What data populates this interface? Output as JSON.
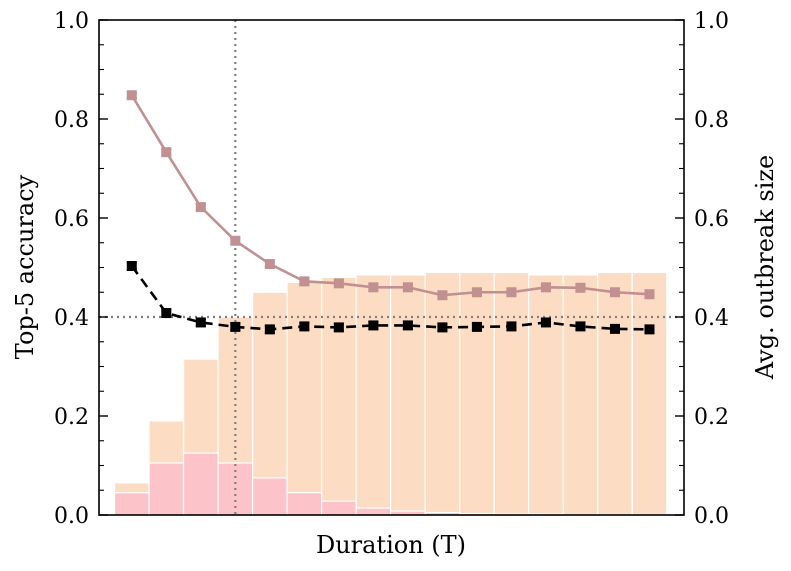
{
  "chart_data": {
    "type": "bar",
    "title": "",
    "xlabel": "Duration (T)",
    "ylabel_left": "Top-5 accuracy",
    "ylabel_right": "Avg. outbreak size",
    "ylim_left": [
      0,
      1.0
    ],
    "ylim_right": [
      0,
      1.0
    ],
    "yticks": [
      "0.0",
      "0.2",
      "0.4",
      "0.6",
      "0.8",
      "1.0"
    ],
    "x": [
      1,
      2,
      3,
      4,
      5,
      6,
      7,
      8,
      9,
      10,
      11,
      12,
      13,
      14,
      15,
      16
    ],
    "xlim": [
      0.05,
      17.0
    ],
    "bar_series": [
      {
        "color": "#fddcc4",
        "values": [
          0.065,
          0.19,
          0.315,
          0.4,
          0.45,
          0.47,
          0.48,
          0.485,
          0.485,
          0.49,
          0.49,
          0.49,
          0.485,
          0.485,
          0.49,
          0.49
        ]
      },
      {
        "color": "#fcc3c9",
        "values": [
          0.045,
          0.105,
          0.125,
          0.105,
          0.075,
          0.045,
          0.028,
          0.014,
          0.008,
          0.005,
          0.003,
          0.002,
          0.002,
          0.001,
          0.001,
          0.001
        ]
      }
    ],
    "line_series": [
      {
        "color": "#c19090",
        "style": "solid",
        "marker": "square",
        "values": [
          0.848,
          0.733,
          0.622,
          0.554,
          0.507,
          0.472,
          0.468,
          0.46,
          0.46,
          0.444,
          0.45,
          0.45,
          0.46,
          0.459,
          0.45,
          0.446
        ],
        "errors": [
          0.005,
          0.006,
          0.006,
          0.006,
          0.006,
          0.006,
          0.006,
          0.006,
          0.006,
          0.006,
          0.006,
          0.006,
          0.006,
          0.006,
          0.006,
          0.006
        ]
      },
      {
        "color": "#000000",
        "style": "dashed",
        "marker": "square",
        "values": [
          0.503,
          0.408,
          0.389,
          0.38,
          0.375,
          0.381,
          0.379,
          0.383,
          0.383,
          0.379,
          0.38,
          0.381,
          0.389,
          0.381,
          0.376,
          0.375
        ],
        "errors": [
          0.007,
          0.007,
          0.007,
          0.007,
          0.007,
          0.007,
          0.007,
          0.007,
          0.007,
          0.007,
          0.007,
          0.007,
          0.007,
          0.007,
          0.007,
          0.007
        ]
      }
    ],
    "reference_lines": {
      "horizontal_y": 0.4,
      "vertical_x": 4.0,
      "color": "#808080",
      "style": "dotted"
    },
    "grid": false,
    "legend": "none"
  }
}
